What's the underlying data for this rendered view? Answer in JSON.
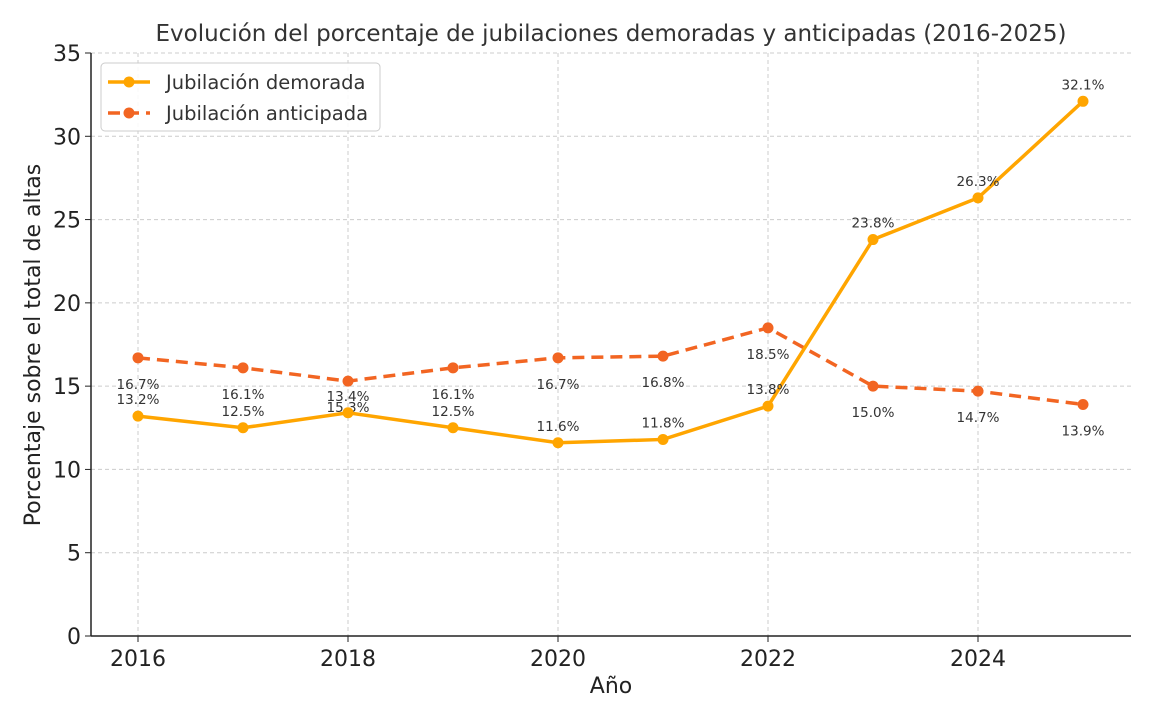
{
  "chart_data": {
    "type": "line",
    "title": "Evolución del porcentaje de jubilaciones demoradas y anticipadas (2016-2025)",
    "xlabel": "Año",
    "ylabel": "Porcentaje sobre el total de altas",
    "x": [
      2016,
      2017,
      2018,
      2019,
      2020,
      2021,
      2022,
      2023,
      2024,
      2025
    ],
    "xticks": [
      "2016",
      "2018",
      "2020",
      "2022",
      "2024"
    ],
    "yticks": [
      "0",
      "5",
      "10",
      "15",
      "20",
      "25",
      "30",
      "35"
    ],
    "ylim": [
      0,
      35
    ],
    "grid": true,
    "legend_position": "top-left",
    "series": [
      {
        "name": "Jubilación demorada",
        "color": "#FFA500",
        "style": "solid",
        "values": [
          13.2,
          12.5,
          13.4,
          12.5,
          11.6,
          11.8,
          13.8,
          23.8,
          26.3,
          32.1
        ],
        "labels": [
          "13.2%",
          "12.5%",
          "13.4%",
          "12.5%",
          "11.6%",
          "11.8%",
          "13.8%",
          "23.8%",
          "26.3%",
          "32.1%"
        ]
      },
      {
        "name": "Jubilación anticipada",
        "color": "#F26522",
        "style": "dashed",
        "values": [
          16.7,
          16.1,
          15.3,
          16.1,
          16.7,
          16.8,
          18.5,
          15.0,
          14.7,
          13.9
        ],
        "labels": [
          "16.7%",
          "16.1%",
          "15.3%",
          "16.1%",
          "16.7%",
          "16.8%",
          "18.5%",
          "15.0%",
          "14.7%",
          "13.9%"
        ]
      }
    ]
  }
}
